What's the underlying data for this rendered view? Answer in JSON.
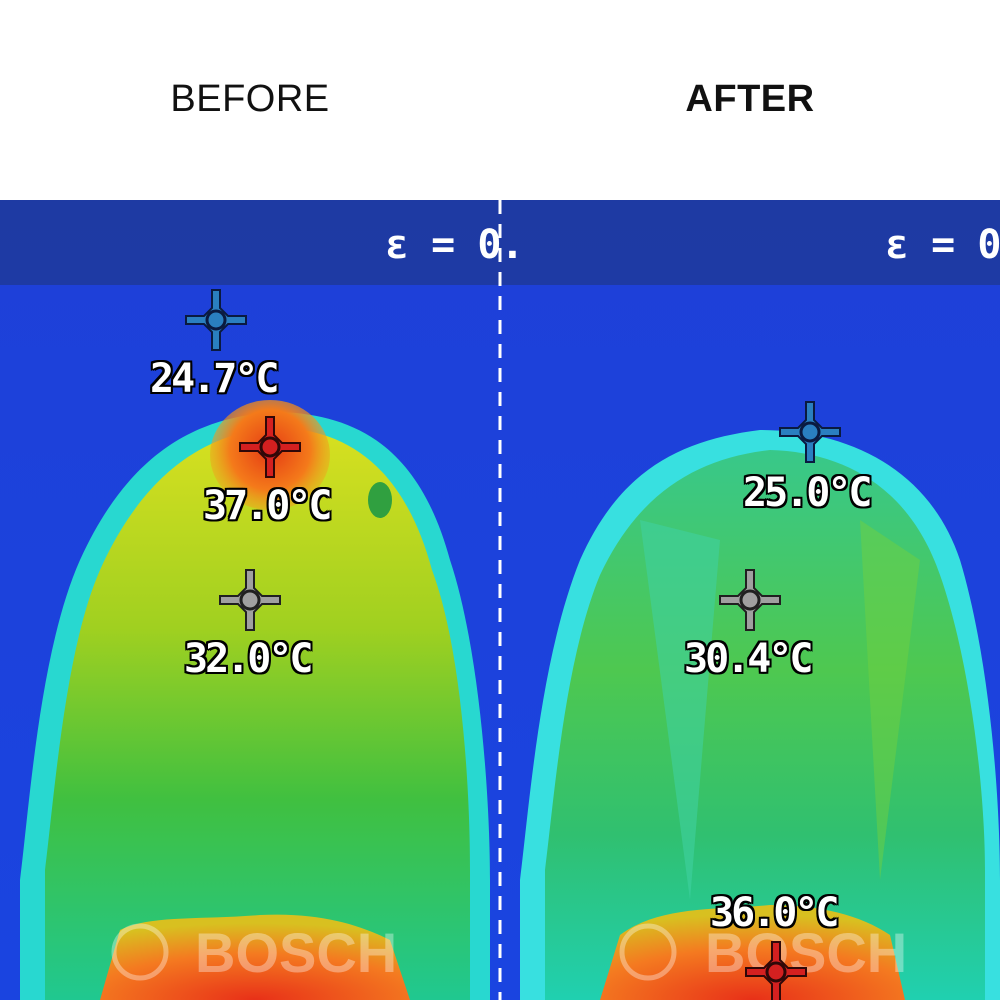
{
  "labels": {
    "before": "BEFORE",
    "after": "AFTER"
  },
  "emissivity": {
    "before": "ε = 0.",
    "after": "ε = 0."
  },
  "watermark": "BOSCH",
  "panels": {
    "before": {
      "readings": [
        {
          "value": "24.7°C",
          "marker": "blue"
        },
        {
          "value": "37.0°C",
          "marker": "red"
        },
        {
          "value": "32.0°C",
          "marker": "gray"
        }
      ]
    },
    "after": {
      "readings": [
        {
          "value": "25.0°C",
          "marker": "blue"
        },
        {
          "value": "30.4°C",
          "marker": "gray"
        },
        {
          "value": "36.0°C",
          "marker": "red"
        }
      ]
    }
  },
  "colors": {
    "blue_marker": "#2a7fc0",
    "red_marker": "#d42020",
    "gray_marker": "#a0a0a0",
    "background": "#1a3fd8"
  }
}
